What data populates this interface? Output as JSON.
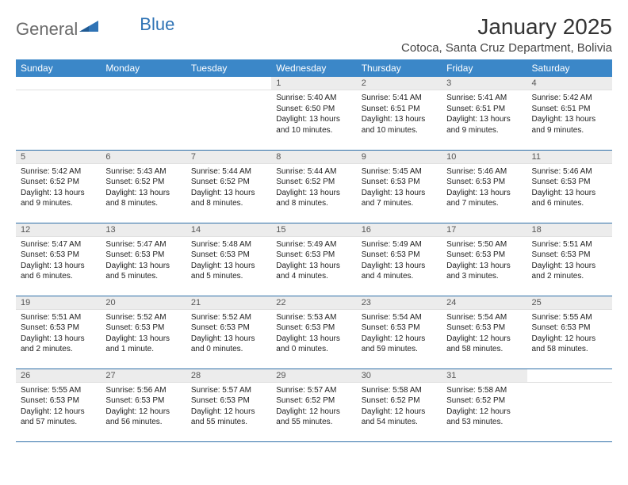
{
  "logo": {
    "textA": "General",
    "textB": "Blue"
  },
  "title": "January 2025",
  "location": "Cotoca, Santa Cruz Department, Bolivia",
  "colors": {
    "header_bg": "#3b87c8",
    "header_text": "#ffffff",
    "daynum_bg": "#ececec",
    "row_divider": "#2f6fa8",
    "logo_gray": "#6a6a6a",
    "logo_blue": "#2f73b5"
  },
  "weekdays": [
    "Sunday",
    "Monday",
    "Tuesday",
    "Wednesday",
    "Thursday",
    "Friday",
    "Saturday"
  ],
  "weeks": [
    [
      {
        "day": "",
        "sunrise": "",
        "sunset": "",
        "daylight": ""
      },
      {
        "day": "",
        "sunrise": "",
        "sunset": "",
        "daylight": ""
      },
      {
        "day": "",
        "sunrise": "",
        "sunset": "",
        "daylight": ""
      },
      {
        "day": "1",
        "sunrise": "Sunrise: 5:40 AM",
        "sunset": "Sunset: 6:50 PM",
        "daylight": "Daylight: 13 hours and 10 minutes."
      },
      {
        "day": "2",
        "sunrise": "Sunrise: 5:41 AM",
        "sunset": "Sunset: 6:51 PM",
        "daylight": "Daylight: 13 hours and 10 minutes."
      },
      {
        "day": "3",
        "sunrise": "Sunrise: 5:41 AM",
        "sunset": "Sunset: 6:51 PM",
        "daylight": "Daylight: 13 hours and 9 minutes."
      },
      {
        "day": "4",
        "sunrise": "Sunrise: 5:42 AM",
        "sunset": "Sunset: 6:51 PM",
        "daylight": "Daylight: 13 hours and 9 minutes."
      }
    ],
    [
      {
        "day": "5",
        "sunrise": "Sunrise: 5:42 AM",
        "sunset": "Sunset: 6:52 PM",
        "daylight": "Daylight: 13 hours and 9 minutes."
      },
      {
        "day": "6",
        "sunrise": "Sunrise: 5:43 AM",
        "sunset": "Sunset: 6:52 PM",
        "daylight": "Daylight: 13 hours and 8 minutes."
      },
      {
        "day": "7",
        "sunrise": "Sunrise: 5:44 AM",
        "sunset": "Sunset: 6:52 PM",
        "daylight": "Daylight: 13 hours and 8 minutes."
      },
      {
        "day": "8",
        "sunrise": "Sunrise: 5:44 AM",
        "sunset": "Sunset: 6:52 PM",
        "daylight": "Daylight: 13 hours and 8 minutes."
      },
      {
        "day": "9",
        "sunrise": "Sunrise: 5:45 AM",
        "sunset": "Sunset: 6:53 PM",
        "daylight": "Daylight: 13 hours and 7 minutes."
      },
      {
        "day": "10",
        "sunrise": "Sunrise: 5:46 AM",
        "sunset": "Sunset: 6:53 PM",
        "daylight": "Daylight: 13 hours and 7 minutes."
      },
      {
        "day": "11",
        "sunrise": "Sunrise: 5:46 AM",
        "sunset": "Sunset: 6:53 PM",
        "daylight": "Daylight: 13 hours and 6 minutes."
      }
    ],
    [
      {
        "day": "12",
        "sunrise": "Sunrise: 5:47 AM",
        "sunset": "Sunset: 6:53 PM",
        "daylight": "Daylight: 13 hours and 6 minutes."
      },
      {
        "day": "13",
        "sunrise": "Sunrise: 5:47 AM",
        "sunset": "Sunset: 6:53 PM",
        "daylight": "Daylight: 13 hours and 5 minutes."
      },
      {
        "day": "14",
        "sunrise": "Sunrise: 5:48 AM",
        "sunset": "Sunset: 6:53 PM",
        "daylight": "Daylight: 13 hours and 5 minutes."
      },
      {
        "day": "15",
        "sunrise": "Sunrise: 5:49 AM",
        "sunset": "Sunset: 6:53 PM",
        "daylight": "Daylight: 13 hours and 4 minutes."
      },
      {
        "day": "16",
        "sunrise": "Sunrise: 5:49 AM",
        "sunset": "Sunset: 6:53 PM",
        "daylight": "Daylight: 13 hours and 4 minutes."
      },
      {
        "day": "17",
        "sunrise": "Sunrise: 5:50 AM",
        "sunset": "Sunset: 6:53 PM",
        "daylight": "Daylight: 13 hours and 3 minutes."
      },
      {
        "day": "18",
        "sunrise": "Sunrise: 5:51 AM",
        "sunset": "Sunset: 6:53 PM",
        "daylight": "Daylight: 13 hours and 2 minutes."
      }
    ],
    [
      {
        "day": "19",
        "sunrise": "Sunrise: 5:51 AM",
        "sunset": "Sunset: 6:53 PM",
        "daylight": "Daylight: 13 hours and 2 minutes."
      },
      {
        "day": "20",
        "sunrise": "Sunrise: 5:52 AM",
        "sunset": "Sunset: 6:53 PM",
        "daylight": "Daylight: 13 hours and 1 minute."
      },
      {
        "day": "21",
        "sunrise": "Sunrise: 5:52 AM",
        "sunset": "Sunset: 6:53 PM",
        "daylight": "Daylight: 13 hours and 0 minutes."
      },
      {
        "day": "22",
        "sunrise": "Sunrise: 5:53 AM",
        "sunset": "Sunset: 6:53 PM",
        "daylight": "Daylight: 13 hours and 0 minutes."
      },
      {
        "day": "23",
        "sunrise": "Sunrise: 5:54 AM",
        "sunset": "Sunset: 6:53 PM",
        "daylight": "Daylight: 12 hours and 59 minutes."
      },
      {
        "day": "24",
        "sunrise": "Sunrise: 5:54 AM",
        "sunset": "Sunset: 6:53 PM",
        "daylight": "Daylight: 12 hours and 58 minutes."
      },
      {
        "day": "25",
        "sunrise": "Sunrise: 5:55 AM",
        "sunset": "Sunset: 6:53 PM",
        "daylight": "Daylight: 12 hours and 58 minutes."
      }
    ],
    [
      {
        "day": "26",
        "sunrise": "Sunrise: 5:55 AM",
        "sunset": "Sunset: 6:53 PM",
        "daylight": "Daylight: 12 hours and 57 minutes."
      },
      {
        "day": "27",
        "sunrise": "Sunrise: 5:56 AM",
        "sunset": "Sunset: 6:53 PM",
        "daylight": "Daylight: 12 hours and 56 minutes."
      },
      {
        "day": "28",
        "sunrise": "Sunrise: 5:57 AM",
        "sunset": "Sunset: 6:53 PM",
        "daylight": "Daylight: 12 hours and 55 minutes."
      },
      {
        "day": "29",
        "sunrise": "Sunrise: 5:57 AM",
        "sunset": "Sunset: 6:52 PM",
        "daylight": "Daylight: 12 hours and 55 minutes."
      },
      {
        "day": "30",
        "sunrise": "Sunrise: 5:58 AM",
        "sunset": "Sunset: 6:52 PM",
        "daylight": "Daylight: 12 hours and 54 minutes."
      },
      {
        "day": "31",
        "sunrise": "Sunrise: 5:58 AM",
        "sunset": "Sunset: 6:52 PM",
        "daylight": "Daylight: 12 hours and 53 minutes."
      },
      {
        "day": "",
        "sunrise": "",
        "sunset": "",
        "daylight": ""
      }
    ]
  ]
}
